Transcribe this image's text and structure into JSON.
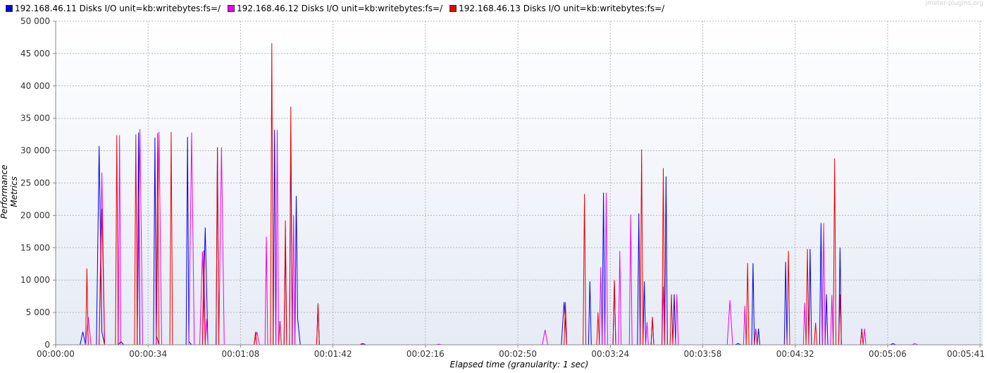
{
  "watermark": "jmeter-plugins.org",
  "chart_data": {
    "type": "line",
    "title": "",
    "xlabel": "Elapsed time (granularity: 1 sec)",
    "ylabel": "Performance Metrics",
    "xlim": [
      0,
      341
    ],
    "ylim": [
      0,
      50000
    ],
    "yticks": [
      0,
      5000,
      10000,
      15000,
      20000,
      25000,
      30000,
      35000,
      40000,
      45000,
      50000
    ],
    "ytick_labels": [
      "0",
      "5 000",
      "10 000",
      "15 000",
      "20 000",
      "25 000",
      "30 000",
      "35 000",
      "40 000",
      "45 000",
      "50 000"
    ],
    "xticks": [
      0,
      34,
      68,
      102,
      136,
      170,
      204,
      238,
      272,
      306,
      340
    ],
    "xtick_labels": [
      "00:00:00",
      "00:00:34",
      "00:01:08",
      "00:01:42",
      "00:02:16",
      "00:02:50",
      "00:03:24",
      "00:03:58",
      "00:04:32",
      "00:05:06",
      "00:05:41"
    ],
    "grid": true,
    "legend_position": "top-left",
    "series": [
      {
        "name": "192.168.46.11 Disks I/O unit=kb:writebytes:fs=/",
        "color": "#0000ee",
        "points": [
          [
            0,
            0
          ],
          [
            9,
            0
          ],
          [
            10,
            2000
          ],
          [
            11,
            0
          ],
          [
            15,
            0
          ],
          [
            16,
            30700
          ],
          [
            17,
            2000
          ],
          [
            18,
            0
          ],
          [
            23,
            0
          ],
          [
            24,
            500
          ],
          [
            25,
            0
          ],
          [
            30,
            0
          ],
          [
            30.5,
            32800
          ],
          [
            31,
            0
          ],
          [
            36,
            0
          ],
          [
            36.5,
            32000
          ],
          [
            37,
            1500
          ],
          [
            38,
            0
          ],
          [
            48,
            0
          ],
          [
            48.5,
            32100
          ],
          [
            49,
            500
          ],
          [
            50,
            0
          ],
          [
            54,
            0
          ],
          [
            55,
            18100
          ],
          [
            56,
            0
          ],
          [
            59,
            0
          ],
          [
            59.5,
            30500
          ],
          [
            60,
            0
          ],
          [
            80,
            0
          ],
          [
            80.5,
            33200
          ],
          [
            81,
            0
          ],
          [
            84,
            0
          ],
          [
            84.5,
            16500
          ],
          [
            85,
            0
          ],
          [
            86,
            0
          ],
          [
            86.5,
            32500
          ],
          [
            87,
            0
          ],
          [
            88,
            0
          ],
          [
            88.5,
            23000
          ],
          [
            89,
            4000
          ],
          [
            90,
            0
          ],
          [
            96,
            0
          ],
          [
            96.5,
            6200
          ],
          [
            97,
            0
          ],
          [
            112,
            0
          ],
          [
            113,
            200
          ],
          [
            114,
            0
          ],
          [
            186,
            0
          ],
          [
            187,
            6600
          ],
          [
            188,
            0
          ],
          [
            196,
            0
          ],
          [
            196.5,
            9800
          ],
          [
            197,
            0
          ],
          [
            201,
            0
          ],
          [
            201.5,
            23500
          ],
          [
            202,
            0
          ],
          [
            205,
            0
          ],
          [
            205.5,
            9800
          ],
          [
            206,
            0
          ],
          [
            214,
            0
          ],
          [
            214.5,
            20300
          ],
          [
            215,
            0
          ],
          [
            216,
            0
          ],
          [
            216.5,
            9800
          ],
          [
            217,
            0
          ],
          [
            219,
            0
          ],
          [
            219.5,
            4200
          ],
          [
            220,
            0
          ],
          [
            224,
            0
          ],
          [
            224.5,
            26000
          ],
          [
            225,
            0
          ],
          [
            227,
            0
          ],
          [
            227.5,
            7800
          ],
          [
            228,
            0
          ],
          [
            250,
            0
          ],
          [
            251,
            200
          ],
          [
            252,
            0
          ],
          [
            256,
            0
          ],
          [
            256.5,
            12600
          ],
          [
            257,
            0
          ],
          [
            258,
            0
          ],
          [
            258.5,
            2500
          ],
          [
            259,
            0
          ],
          [
            268,
            0
          ],
          [
            268.5,
            12800
          ],
          [
            269,
            0
          ],
          [
            277,
            0
          ],
          [
            277.5,
            14800
          ],
          [
            278,
            0
          ],
          [
            281,
            0
          ],
          [
            281.5,
            18800
          ],
          [
            282,
            0
          ],
          [
            283,
            0
          ],
          [
            283.5,
            7800
          ],
          [
            284,
            0
          ],
          [
            288,
            0
          ],
          [
            288.5,
            15000
          ],
          [
            289,
            0
          ],
          [
            296,
            0
          ],
          [
            296.5,
            2500
          ],
          [
            297,
            0
          ],
          [
            307,
            0
          ],
          [
            308,
            200
          ],
          [
            309,
            0
          ],
          [
            341,
            0
          ]
        ]
      },
      {
        "name": "192.168.46.12 Disks I/O unit=kb:writebytes:fs=/",
        "color": "#ee00ee",
        "points": [
          [
            0,
            0
          ],
          [
            11,
            0
          ],
          [
            12,
            4300
          ],
          [
            13,
            0
          ],
          [
            16,
            0
          ],
          [
            17,
            26600
          ],
          [
            18,
            0
          ],
          [
            23,
            0
          ],
          [
            23.5,
            32400
          ],
          [
            24,
            0
          ],
          [
            30,
            0
          ],
          [
            31,
            33300
          ],
          [
            32,
            0
          ],
          [
            37,
            0
          ],
          [
            38,
            32900
          ],
          [
            39,
            0
          ],
          [
            49,
            0
          ],
          [
            50,
            32800
          ],
          [
            51,
            0
          ],
          [
            53,
            0
          ],
          [
            54,
            14400
          ],
          [
            55,
            0
          ],
          [
            55.5,
            4000
          ],
          [
            56,
            0
          ],
          [
            60,
            0
          ],
          [
            61,
            30500
          ],
          [
            62,
            0
          ],
          [
            73,
            0
          ],
          [
            74,
            2000
          ],
          [
            75,
            0
          ],
          [
            77,
            0
          ],
          [
            77.5,
            16700
          ],
          [
            78,
            0
          ],
          [
            81,
            0
          ],
          [
            81.5,
            33200
          ],
          [
            82,
            0
          ],
          [
            87,
            0
          ],
          [
            87.5,
            20000
          ],
          [
            88,
            0
          ],
          [
            112,
            0
          ],
          [
            112.5,
            200
          ],
          [
            113,
            0
          ],
          [
            140,
            0
          ],
          [
            141,
            100
          ],
          [
            142,
            0
          ],
          [
            179,
            0
          ],
          [
            180,
            2300
          ],
          [
            181,
            0
          ],
          [
            194,
            0
          ],
          [
            195,
            0
          ],
          [
            200,
            0
          ],
          [
            200.5,
            12000
          ],
          [
            201,
            0
          ],
          [
            202,
            0
          ],
          [
            202.5,
            23500
          ],
          [
            203,
            0
          ],
          [
            207,
            0
          ],
          [
            207.5,
            14500
          ],
          [
            208,
            0
          ],
          [
            211,
            0
          ],
          [
            211.5,
            20100
          ],
          [
            212,
            0
          ],
          [
            217,
            0
          ],
          [
            217.5,
            3500
          ],
          [
            218,
            0
          ],
          [
            223,
            0
          ],
          [
            223.5,
            9000
          ],
          [
            224,
            0
          ],
          [
            228,
            0
          ],
          [
            228.5,
            7800
          ],
          [
            229,
            0
          ],
          [
            247,
            0
          ],
          [
            248,
            6900
          ],
          [
            249,
            0
          ],
          [
            253,
            0
          ],
          [
            253.5,
            6000
          ],
          [
            254,
            0
          ],
          [
            275,
            0
          ],
          [
            275.5,
            6500
          ],
          [
            276,
            0
          ],
          [
            282,
            0
          ],
          [
            282.5,
            18800
          ],
          [
            283,
            0
          ],
          [
            285,
            0
          ],
          [
            285.5,
            7700
          ],
          [
            286,
            0
          ],
          [
            293,
            0
          ],
          [
            293.5,
            0
          ],
          [
            297,
            0
          ],
          [
            297.5,
            2500
          ],
          [
            298,
            0
          ],
          [
            315,
            0
          ],
          [
            316,
            200
          ],
          [
            317,
            0
          ],
          [
            341,
            0
          ]
        ]
      },
      {
        "name": "192.168.46.13 Disks I/O unit=kb:writebytes:fs=/",
        "color": "#ee0000",
        "points": [
          [
            0,
            0
          ],
          [
            11,
            0
          ],
          [
            11.5,
            11800
          ],
          [
            12,
            0
          ],
          [
            16,
            0
          ],
          [
            17,
            21000
          ],
          [
            18,
            0
          ],
          [
            22,
            0
          ],
          [
            22.5,
            32400
          ],
          [
            23,
            0
          ],
          [
            29,
            0
          ],
          [
            29.5,
            32500
          ],
          [
            30,
            0
          ],
          [
            37,
            0
          ],
          [
            37.5,
            32700
          ],
          [
            38,
            0
          ],
          [
            42,
            0
          ],
          [
            42.5,
            32900
          ],
          [
            43,
            0
          ],
          [
            54,
            0
          ],
          [
            54.5,
            14600
          ],
          [
            55,
            0
          ],
          [
            59,
            0
          ],
          [
            59.5,
            30500
          ],
          [
            60,
            0
          ],
          [
            73,
            0
          ],
          [
            73.5,
            2000
          ],
          [
            74,
            0
          ],
          [
            79,
            0
          ],
          [
            79.5,
            46600
          ],
          [
            80,
            0
          ],
          [
            82,
            0
          ],
          [
            82.5,
            3700
          ],
          [
            83,
            0
          ],
          [
            84,
            0
          ],
          [
            84.5,
            19200
          ],
          [
            85,
            0
          ],
          [
            86,
            0
          ],
          [
            86.5,
            36800
          ],
          [
            87,
            0
          ],
          [
            96,
            0
          ],
          [
            96.5,
            6400
          ],
          [
            97,
            0
          ],
          [
            112,
            0
          ],
          [
            112.5,
            100
          ],
          [
            113,
            0
          ],
          [
            187,
            0
          ],
          [
            187.5,
            6600
          ],
          [
            188,
            0
          ],
          [
            194,
            0
          ],
          [
            194.5,
            23300
          ],
          [
            195,
            0
          ],
          [
            199,
            0
          ],
          [
            199.5,
            5000
          ],
          [
            200,
            0
          ],
          [
            205,
            0
          ],
          [
            205.5,
            10000
          ],
          [
            206,
            0
          ],
          [
            209,
            0
          ],
          [
            209.5,
            0
          ],
          [
            213,
            0
          ],
          [
            213.5,
            0
          ],
          [
            215,
            0
          ],
          [
            215.5,
            30200
          ],
          [
            216,
            0
          ],
          [
            219,
            0
          ],
          [
            219.5,
            4300
          ],
          [
            220,
            0
          ],
          [
            222,
            0
          ],
          [
            222.5,
            0
          ],
          [
            223,
            0
          ],
          [
            223.5,
            27300
          ],
          [
            224,
            0
          ],
          [
            226,
            0
          ],
          [
            226.5,
            7800
          ],
          [
            227,
            0
          ],
          [
            254,
            0
          ],
          [
            254.5,
            12600
          ],
          [
            255,
            0
          ],
          [
            257,
            0
          ],
          [
            257.5,
            2500
          ],
          [
            258,
            0
          ],
          [
            269,
            0
          ],
          [
            269.5,
            14500
          ],
          [
            270,
            0
          ],
          [
            276,
            0
          ],
          [
            276.5,
            14800
          ],
          [
            277,
            0
          ],
          [
            279,
            0
          ],
          [
            279.5,
            3400
          ],
          [
            280,
            0
          ],
          [
            286,
            0
          ],
          [
            286.5,
            28800
          ],
          [
            287,
            0
          ],
          [
            288,
            0
          ],
          [
            288.5,
            7800
          ],
          [
            289,
            0
          ],
          [
            296,
            0
          ],
          [
            296.5,
            2400
          ],
          [
            297,
            0
          ],
          [
            341,
            0
          ]
        ]
      }
    ]
  }
}
